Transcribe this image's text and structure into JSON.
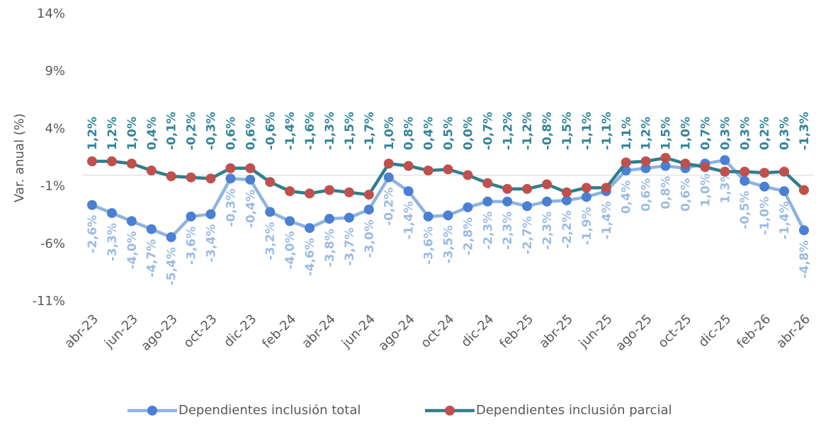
{
  "chart_data": {
    "type": "line",
    "y_label": "Var. anual (%)",
    "categories": [
      "abr-23",
      null,
      "jun-23",
      null,
      "ago-23",
      null,
      "oct-23",
      null,
      "dic-23",
      null,
      "feb-24",
      null,
      "abr-24",
      null,
      "jun-24",
      null,
      "ago-24",
      null,
      "oct-24",
      null,
      "dic-24",
      null,
      "feb-25",
      null,
      "abr-25",
      null,
      "jun-25",
      null,
      "ago-25",
      null,
      "oct-25",
      null,
      "dic-25",
      null,
      "feb-26",
      null,
      "abr-26"
    ],
    "ylim": [
      -11,
      14
    ],
    "yticks": [
      {
        "value": -11,
        "label": "-11%"
      },
      {
        "value": -6,
        "label": "-6%"
      },
      {
        "value": -1,
        "label": "-1%"
      },
      {
        "value": 4,
        "label": "4%"
      },
      {
        "value": 9,
        "label": "9%"
      },
      {
        "value": 14,
        "label": "14%"
      }
    ],
    "grid": false,
    "legend": "bottom",
    "series": [
      {
        "name": "Dependientes inclusión total",
        "color": "#8fb3e0",
        "marker_color": "#4a7fd4",
        "label_color": "#9bbbe2",
        "label_position": "below",
        "values": [
          -2.6,
          -3.3,
          -4.0,
          -4.7,
          -5.4,
          -3.6,
          -3.4,
          -0.3,
          -0.4,
          -3.2,
          -4.0,
          -4.6,
          -3.8,
          -3.7,
          -3.0,
          -0.2,
          -1.4,
          -3.6,
          -3.5,
          -2.8,
          -2.3,
          -2.3,
          -2.7,
          -2.3,
          -2.2,
          -1.9,
          -1.4,
          0.4,
          0.6,
          0.8,
          0.6,
          1.0,
          1.3,
          -0.5,
          -1.0,
          -1.4,
          -4.8
        ],
        "value_labels": [
          "-2,6%",
          "-3,3%",
          "-4,0%",
          "-4,7%",
          "-5,4%",
          "-3,6%",
          "-3,4%",
          "-0,3%",
          "-0,4%",
          "-3,2%",
          "-4,0%",
          "-4,6%",
          "-3,8%",
          "-3,7%",
          "-3,0%",
          "-0,2%",
          "-1,4%",
          "-3,6%",
          "-3,5%",
          "-2,8%",
          "-2,3%",
          "-2,3%",
          "-2,7%",
          "-2,3%",
          "-2,2%",
          "-1,9%",
          "-1,4%",
          "0,4%",
          "0,6%",
          "0,8%",
          "0,6%",
          "1,0%",
          "1,3%",
          "-0,5%",
          "-1,0%",
          "-1,4%",
          "-4,8%"
        ]
      },
      {
        "name": "Dependientes inclusión parcial",
        "color": "#2d7f8e",
        "marker_color": "#c0504d",
        "label_color": "#31859c",
        "label_position": "above",
        "values": [
          1.2,
          1.2,
          1.0,
          0.4,
          -0.1,
          -0.2,
          -0.3,
          0.6,
          0.6,
          -0.6,
          -1.4,
          -1.6,
          -1.3,
          -1.5,
          -1.7,
          1.0,
          0.8,
          0.4,
          0.5,
          0.0,
          -0.7,
          -1.2,
          -1.2,
          -0.8,
          -1.5,
          -1.1,
          -1.1,
          1.1,
          1.2,
          1.5,
          1.0,
          0.7,
          0.3,
          0.3,
          0.2,
          0.3,
          -1.3
        ],
        "value_labels": [
          "1,2%",
          "1,2%",
          "1,0%",
          "0,4%",
          "-0,1%",
          "-0,2%",
          "-0,3%",
          "0,6%",
          "0,6%",
          "-0,6%",
          "-1,4%",
          "-1,6%",
          "-1,3%",
          "-1,5%",
          "-1,7%",
          "1,0%",
          "0,8%",
          "0,4%",
          "0,5%",
          "0,0%",
          "-0,7%",
          "-1,2%",
          "-1,2%",
          "-0,8%",
          "-1,5%",
          "-1,1%",
          "-1,1%",
          "1,1%",
          "1,2%",
          "1,5%",
          "1,0%",
          "0,7%",
          "0,3%",
          "0,3%",
          "0,2%",
          "0,3%",
          "-1,3%"
        ]
      }
    ]
  }
}
